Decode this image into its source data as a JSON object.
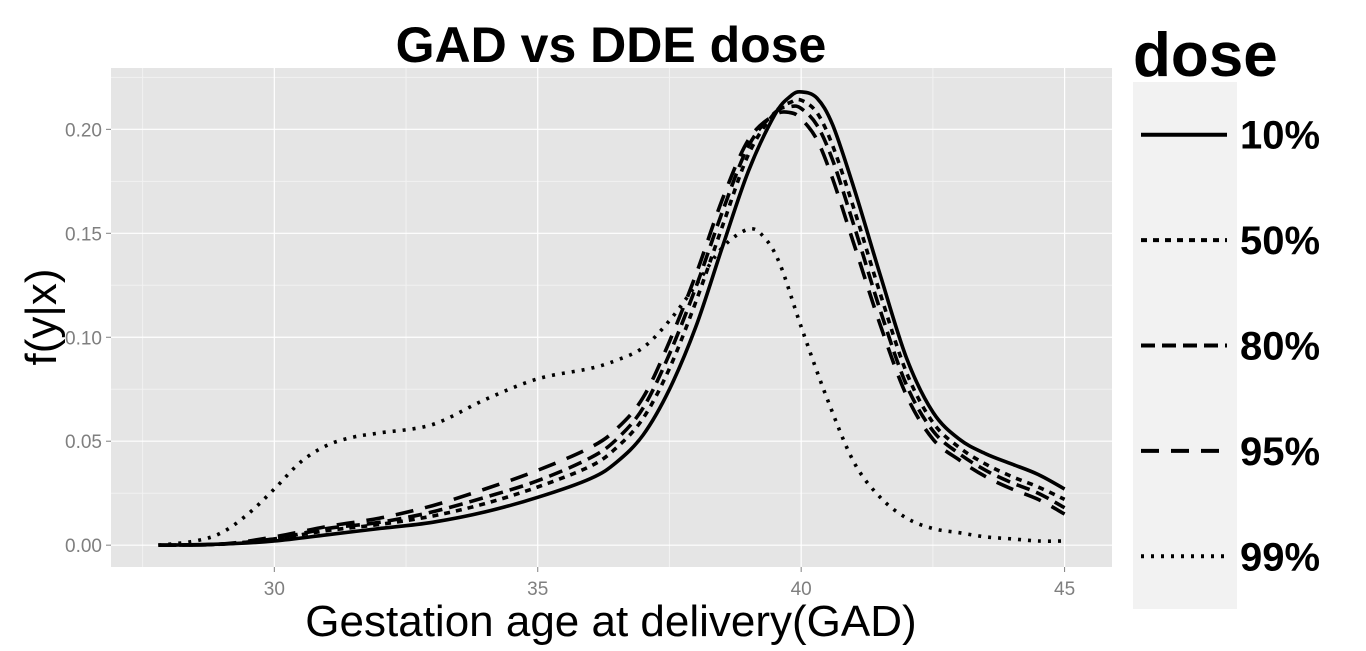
{
  "chart_data": {
    "type": "line",
    "title": "GAD vs DDE dose",
    "xlabel": "Gestation age at delivery(GAD)",
    "ylabel": "f(y|x)",
    "xlim": [
      26.9,
      45.9
    ],
    "ylim": [
      -0.0105,
      0.2295
    ],
    "x_ticks": [
      30,
      35,
      40,
      45
    ],
    "x_tick_labels": [
      "30",
      "35",
      "40",
      "45"
    ],
    "y_ticks": [
      0.0,
      0.05,
      0.1,
      0.15,
      0.2
    ],
    "y_tick_labels": [
      "0.00",
      "0.05",
      "0.10",
      "0.15",
      "0.20"
    ],
    "grid": true,
    "legend": {
      "title": "dose",
      "position": "right"
    },
    "colors": {
      "panel": "#e5e5e5",
      "grid_major": "#ffffff",
      "grid_minor": "#f2f2f2",
      "legend_key": "#f2f2f2",
      "line": "#000000",
      "tick_label": "#7f7f7f"
    },
    "series": [
      {
        "name": "10%",
        "linetype": "solid",
        "x": [
          27.8,
          29,
          30,
          31,
          32,
          33,
          34,
          35,
          36,
          36.5,
          37,
          37.5,
          38,
          38.5,
          39,
          39.5,
          39.8,
          40,
          40.3,
          40.6,
          41,
          41.5,
          42,
          42.5,
          43,
          43.5,
          44,
          44.5,
          45
        ],
        "y": [
          0.0,
          0.0005,
          0.002,
          0.005,
          0.008,
          0.011,
          0.016,
          0.023,
          0.032,
          0.04,
          0.053,
          0.075,
          0.105,
          0.143,
          0.18,
          0.207,
          0.216,
          0.218,
          0.215,
          0.202,
          0.172,
          0.13,
          0.09,
          0.064,
          0.051,
          0.044,
          0.039,
          0.034,
          0.027
        ]
      },
      {
        "name": "50%",
        "linetype": "dashed-short",
        "x": [
          27.8,
          29,
          30,
          31,
          32,
          33,
          34,
          35,
          36,
          36.5,
          37,
          37.5,
          38,
          38.5,
          39,
          39.5,
          39.8,
          40,
          40.3,
          40.6,
          41,
          41.5,
          42,
          42.5,
          43,
          43.5,
          44,
          44.5,
          45
        ],
        "y": [
          0.0,
          0.0005,
          0.003,
          0.007,
          0.01,
          0.014,
          0.02,
          0.028,
          0.038,
          0.047,
          0.061,
          0.085,
          0.117,
          0.153,
          0.188,
          0.208,
          0.213,
          0.214,
          0.208,
          0.192,
          0.162,
          0.121,
          0.083,
          0.059,
          0.047,
          0.039,
          0.033,
          0.028,
          0.022
        ]
      },
      {
        "name": "80%",
        "linetype": "dashed-medium",
        "x": [
          27.8,
          29,
          30,
          31,
          32,
          33,
          34,
          35,
          36,
          36.5,
          37,
          37.5,
          38,
          38.5,
          39,
          39.5,
          39.8,
          40,
          40.3,
          40.6,
          41,
          41.5,
          42,
          42.5,
          43,
          43.5,
          44,
          44.5,
          45
        ],
        "y": [
          0.0,
          0.0005,
          0.003,
          0.008,
          0.011,
          0.016,
          0.023,
          0.031,
          0.042,
          0.051,
          0.066,
          0.092,
          0.124,
          0.16,
          0.192,
          0.208,
          0.211,
          0.21,
          0.202,
          0.185,
          0.154,
          0.113,
          0.077,
          0.055,
          0.044,
          0.036,
          0.03,
          0.025,
          0.018
        ]
      },
      {
        "name": "95%",
        "linetype": "dashed-long",
        "x": [
          27.8,
          29,
          30,
          31,
          32,
          33,
          34,
          35,
          36,
          36.5,
          37,
          37.5,
          38,
          38.5,
          39,
          39.5,
          39.8,
          40,
          40.3,
          40.6,
          41,
          41.5,
          42,
          42.5,
          43,
          43.5,
          44,
          44.5,
          45
        ],
        "y": [
          0.0,
          0.0005,
          0.004,
          0.009,
          0.013,
          0.019,
          0.027,
          0.036,
          0.047,
          0.056,
          0.071,
          0.098,
          0.13,
          0.166,
          0.195,
          0.207,
          0.208,
          0.205,
          0.195,
          0.176,
          0.145,
          0.106,
          0.072,
          0.051,
          0.041,
          0.033,
          0.027,
          0.022,
          0.015
        ]
      },
      {
        "name": "99%",
        "linetype": "dotted",
        "x": [
          27.8,
          28.5,
          29,
          29.5,
          30,
          30.5,
          31,
          31.5,
          32,
          33,
          34,
          35,
          36,
          36.5,
          37,
          37.5,
          38,
          38.5,
          39,
          39.3,
          39.6,
          40,
          40.5,
          41,
          41.5,
          42,
          42.5,
          43,
          43.5,
          44,
          44.5,
          45
        ],
        "y": [
          0.0,
          0.002,
          0.006,
          0.015,
          0.027,
          0.04,
          0.048,
          0.052,
          0.054,
          0.058,
          0.07,
          0.08,
          0.085,
          0.089,
          0.095,
          0.108,
          0.125,
          0.143,
          0.152,
          0.148,
          0.135,
          0.105,
          0.07,
          0.04,
          0.023,
          0.013,
          0.008,
          0.006,
          0.004,
          0.003,
          0.002,
          0.002
        ]
      }
    ]
  }
}
